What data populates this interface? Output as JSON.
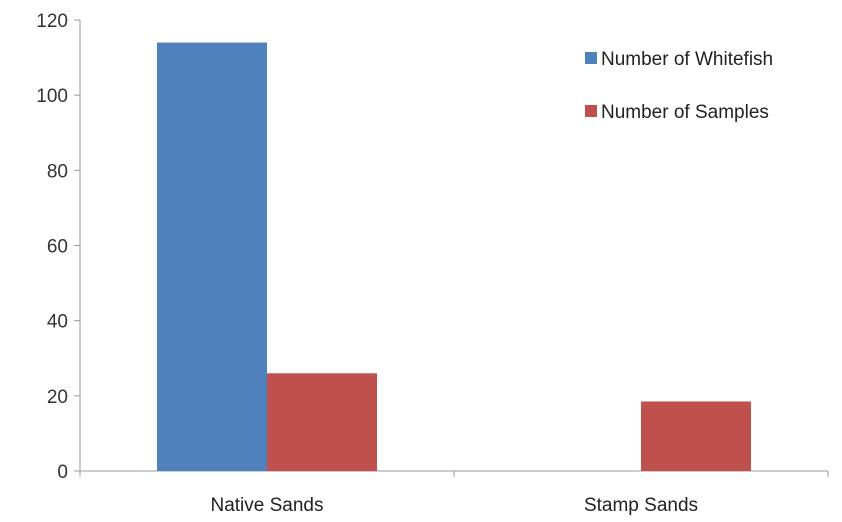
{
  "chart_data": {
    "type": "bar",
    "categories": [
      "Native Sands",
      "Stamp Sands"
    ],
    "series": [
      {
        "name": "Number of Whitefish",
        "values": [
          114,
          0
        ],
        "color": "#4f81bd"
      },
      {
        "name": "Number of Samples",
        "values": [
          26,
          18.5
        ],
        "color": "#c0504d"
      }
    ],
    "title": "",
    "xlabel": "",
    "ylabel": "",
    "ylim": [
      0,
      120
    ],
    "yticks": [
      "0",
      "20",
      "40",
      "60",
      "80",
      "100",
      "120"
    ],
    "grid": false,
    "legend": "top-right"
  }
}
